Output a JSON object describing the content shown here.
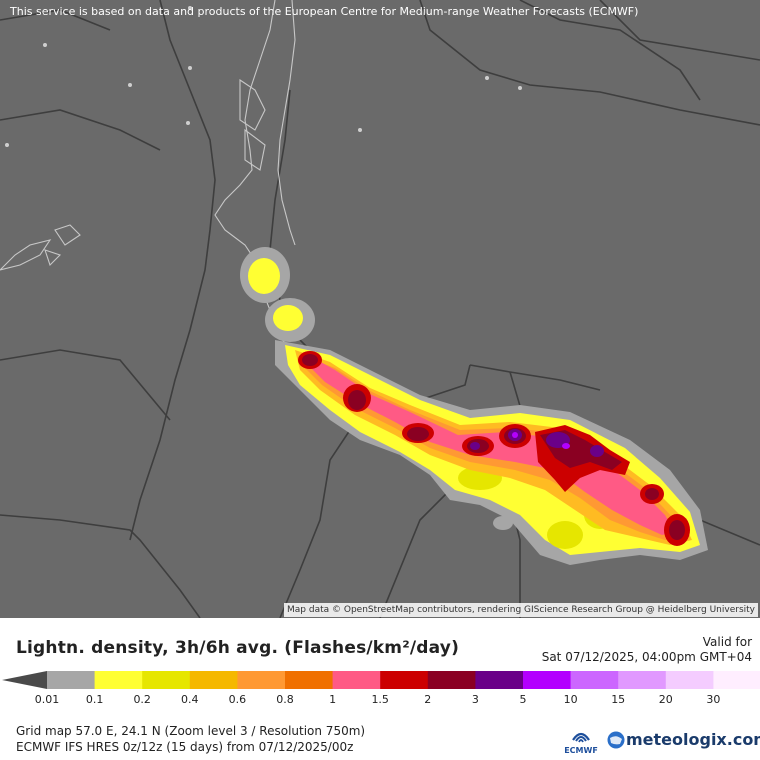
{
  "map": {
    "notice": "This service is based on data and products of the European Centre for Medium-range Weather Forecasts (ECMWF)",
    "attribution": "Map data © OpenStreetMap contributors, rendering GIScience Research Group @ Heidelberg University",
    "background_color": "#6a6a6a",
    "border_color": "#3e3e3e",
    "coast_color": "#dcdcdc"
  },
  "header": {
    "title": "Lightn. density, 3h/6h avg. (Flashes/km²/day)",
    "valid_label": "Valid for",
    "valid_time": "Sat 07/12/2025, 04:00pm GMT+04"
  },
  "legend": {
    "labels": [
      "0.01",
      "0.1",
      "0.2",
      "0.4",
      "0.6",
      "0.8",
      "1",
      "1.5",
      "2",
      "3",
      "5",
      "10",
      "15",
      "20",
      "30"
    ],
    "colors": [
      "#a6a6a6",
      "#ffff33",
      "#e6e600",
      "#f5b800",
      "#ff9933",
      "#f07000",
      "#ff5a85",
      "#cc0000",
      "#8a0022",
      "#6a0088",
      "#b300ff",
      "#cc66ff",
      "#e199ff",
      "#f4ccff",
      "#ffeeff"
    ]
  },
  "footer": {
    "grid_info": "Grid map 57.0 E, 24.1 N (Zoom level 3 / Resolution 750m)",
    "model_info": "ECMWF IFS HRES 0z/12z (15 days) from  07/12/2025/00z",
    "ecmwf_logo_text": "ECMWF",
    "brand_name": "meteologix.com"
  }
}
